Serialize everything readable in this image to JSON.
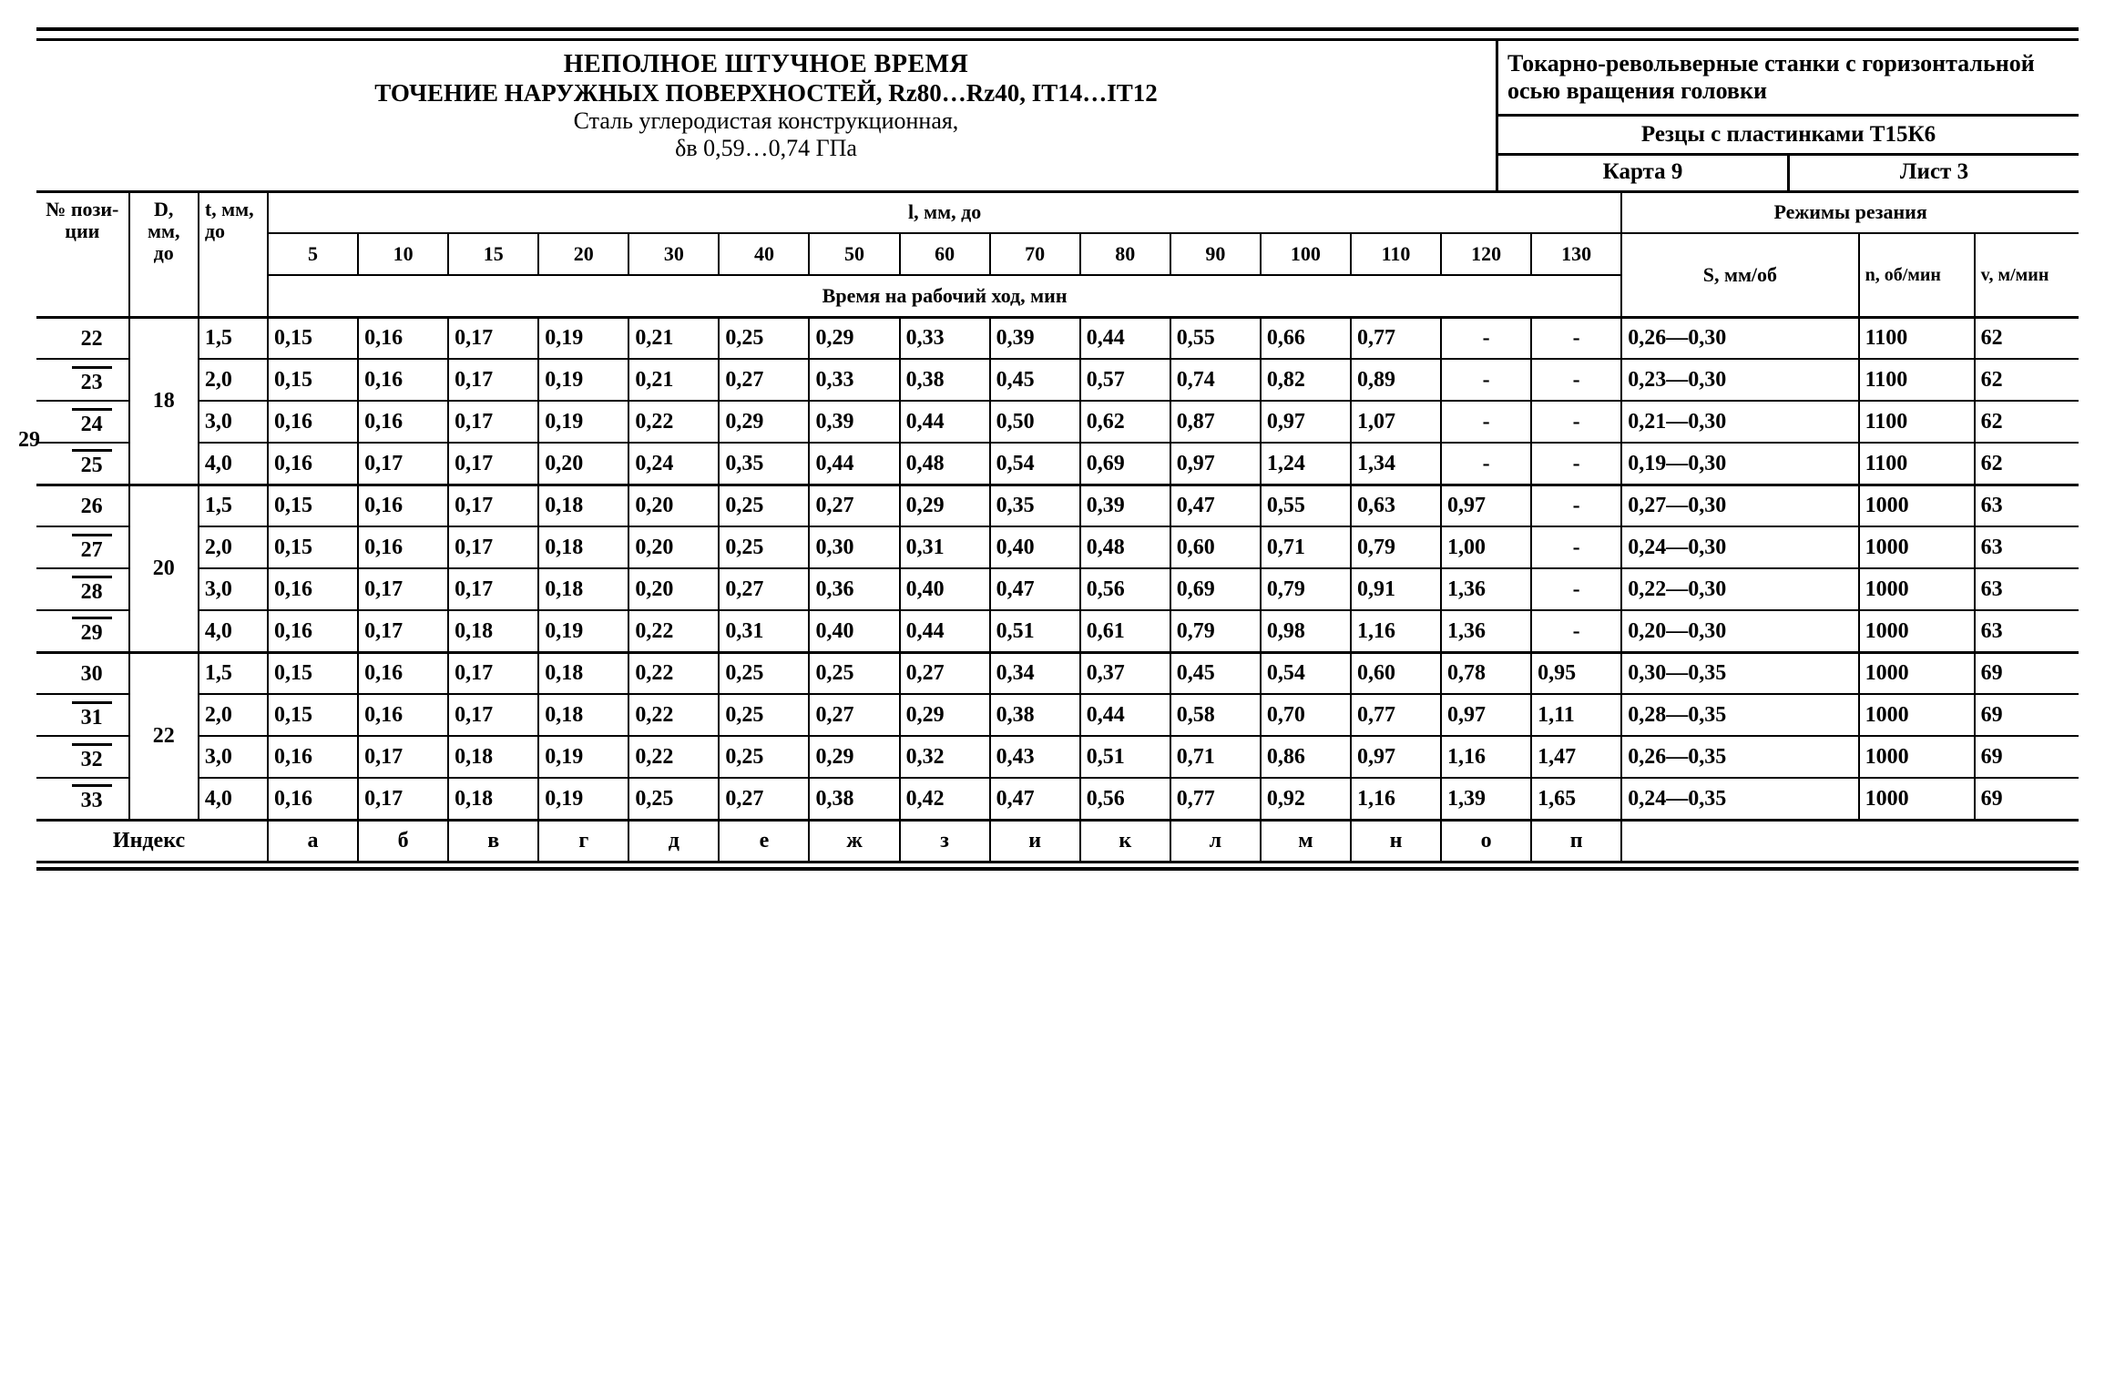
{
  "page_number": "29",
  "header": {
    "title1": "НЕПОЛНОЕ ШТУЧНОЕ ВРЕМЯ",
    "title2": "ТОЧЕНИЕ НАРУЖНЫХ ПОВЕРХНОСТЕЙ, Rz80…Rz40, IT14…IT12",
    "title3": "Сталь углеродистая конструкционная,",
    "title4": "δв 0,59…0,74 ГПа",
    "machine": "Токарно-револьверные станки с горизонтальной осью вращения головки",
    "tool": "Резцы с пластинками Т15К6",
    "card": "Карта 9",
    "sheet": "Лист 3"
  },
  "columns": {
    "pos": "№ пози-ции",
    "d": "D, мм, до",
    "t": "t, мм, до",
    "l_group": "l, мм, до",
    "l": [
      "5",
      "10",
      "15",
      "20",
      "30",
      "40",
      "50",
      "60",
      "70",
      "80",
      "90",
      "100",
      "110",
      "120",
      "130"
    ],
    "time_sub": "Время на рабочий ход, мин",
    "modes": "Режимы резания",
    "s": "S, мм/об",
    "n": "n, об/мин",
    "v": "v, м/мин"
  },
  "groups": [
    {
      "d": "18",
      "tall": true,
      "rows": [
        {
          "pos": "22",
          "t": "1,5",
          "v": [
            "0,15",
            "0,16",
            "0,17",
            "0,19",
            "0,21",
            "0,25",
            "0,29",
            "0,33",
            "0,39",
            "0,44",
            "0,55",
            "0,66",
            "0,77",
            "-",
            "-"
          ],
          "s": "0,26—0,30",
          "n": "1100",
          "vv": "62"
        },
        {
          "pos": "23",
          "t": "2,0",
          "v": [
            "0,15",
            "0,16",
            "0,17",
            "0,19",
            "0,21",
            "0,27",
            "0,33",
            "0,38",
            "0,45",
            "0,57",
            "0,74",
            "0,82",
            "0,89",
            "-",
            "-"
          ],
          "s": "0,23—0,30",
          "n": "1100",
          "vv": "62"
        },
        {
          "pos": "24",
          "t": "3,0",
          "v": [
            "0,16",
            "0,16",
            "0,17",
            "0,19",
            "0,22",
            "0,29",
            "0,39",
            "0,44",
            "0,50",
            "0,62",
            "0,87",
            "0,97",
            "1,07",
            "-",
            "-"
          ],
          "s": "0,21—0,30",
          "n": "1100",
          "vv": "62"
        },
        {
          "pos": "25",
          "t": "4,0",
          "v": [
            "0,16",
            "0,17",
            "0,17",
            "0,20",
            "0,24",
            "0,35",
            "0,44",
            "0,48",
            "0,54",
            "0,69",
            "0,97",
            "1,24",
            "1,34",
            "-",
            "-"
          ],
          "s": "0,19—0,30",
          "n": "1100",
          "vv": "62"
        }
      ]
    },
    {
      "d": "20",
      "tall": true,
      "rows": [
        {
          "pos": "26",
          "t": "1,5",
          "v": [
            "0,15",
            "0,16",
            "0,17",
            "0,18",
            "0,20",
            "0,25",
            "0,27",
            "0,29",
            "0,35",
            "0,39",
            "0,47",
            "0,55",
            "0,63",
            "0,97",
            "-"
          ],
          "s": "0,27—0,30",
          "n": "1000",
          "vv": "63"
        },
        {
          "pos": "27",
          "t": "2,0",
          "v": [
            "0,15",
            "0,16",
            "0,17",
            "0,18",
            "0,20",
            "0,25",
            "0,30",
            "0,31",
            "0,40",
            "0,48",
            "0,60",
            "0,71",
            "0,79",
            "1,00",
            "-"
          ],
          "s": "0,24—0,30",
          "n": "1000",
          "vv": "63"
        },
        {
          "pos": "28",
          "t": "3,0",
          "v": [
            "0,16",
            "0,17",
            "0,17",
            "0,18",
            "0,20",
            "0,27",
            "0,36",
            "0,40",
            "0,47",
            "0,56",
            "0,69",
            "0,79",
            "0,91",
            "1,36",
            "-"
          ],
          "s": "0,22—0,30",
          "n": "1000",
          "vv": "63"
        },
        {
          "pos": "29",
          "t": "4,0",
          "v": [
            "0,16",
            "0,17",
            "0,18",
            "0,19",
            "0,22",
            "0,31",
            "0,40",
            "0,44",
            "0,51",
            "0,61",
            "0,79",
            "0,98",
            "1,16",
            "1,36",
            "-"
          ],
          "s": "0,20—0,30",
          "n": "1000",
          "vv": "63"
        }
      ]
    },
    {
      "d": "22",
      "tall": false,
      "rows": [
        {
          "pos": "30",
          "t": "1,5",
          "v": [
            "0,15",
            "0,16",
            "0,17",
            "0,18",
            "0,22",
            "0,25",
            "0,25",
            "0,27",
            "0,34",
            "0,37",
            "0,45",
            "0,54",
            "0,60",
            "0,78",
            "0,95"
          ],
          "s": "0,30—0,35",
          "n": "1000",
          "vv": "69"
        },
        {
          "pos": "31",
          "t": "2,0",
          "v": [
            "0,15",
            "0,16",
            "0,17",
            "0,18",
            "0,22",
            "0,25",
            "0,27",
            "0,29",
            "0,38",
            "0,44",
            "0,58",
            "0,70",
            "0,77",
            "0,97",
            "1,11"
          ],
          "s": "0,28—0,35",
          "n": "1000",
          "vv": "69"
        },
        {
          "pos": "32",
          "t": "3,0",
          "v": [
            "0,16",
            "0,17",
            "0,18",
            "0,19",
            "0,22",
            "0,25",
            "0,29",
            "0,32",
            "0,43",
            "0,51",
            "0,71",
            "0,86",
            "0,97",
            "1,16",
            "1,47"
          ],
          "s": "0,26—0,35",
          "n": "1000",
          "vv": "69"
        },
        {
          "pos": "33",
          "t": "4,0",
          "v": [
            "0,16",
            "0,17",
            "0,18",
            "0,19",
            "0,25",
            "0,27",
            "0,38",
            "0,42",
            "0,47",
            "0,56",
            "0,77",
            "0,92",
            "1,16",
            "1,39",
            "1,65"
          ],
          "s": "0,24—0,35",
          "n": "1000",
          "vv": "69"
        }
      ]
    }
  ],
  "index_row": {
    "label": "Индекс",
    "values": [
      "а",
      "б",
      "в",
      "г",
      "д",
      "е",
      "ж",
      "з",
      "и",
      "к",
      "л",
      "м",
      "н",
      "о",
      "п"
    ]
  }
}
